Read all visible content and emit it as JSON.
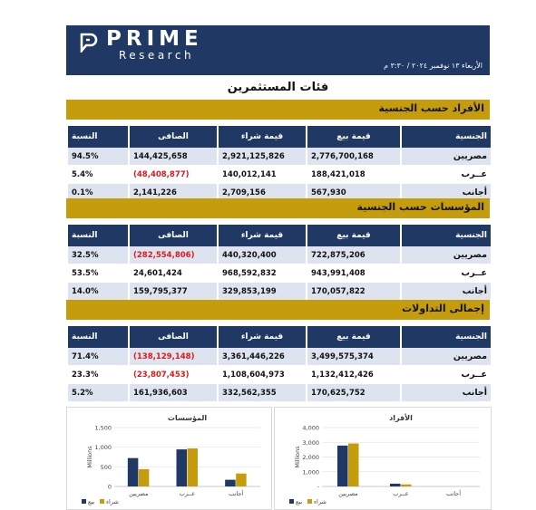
{
  "header": {
    "brand": "PRIME",
    "sub_brand": "Research",
    "date": "الأربعاء ١٣ نوفمبر ٢٠٢٤ / ٣:٣٠ م",
    "colors": {
      "navy": "#1f3864",
      "gold": "#c59d0c",
      "negative": "#e0191b"
    }
  },
  "page_title": "فئات المستثمرين",
  "columns": {
    "nationality": "الجنسية",
    "sell": "قيمة بيع",
    "buy": "قيمة شراء",
    "net": "الصافى",
    "ratio": "النسبة"
  },
  "sections": [
    {
      "title": "الأفراد حسب الجنسية",
      "rows": [
        {
          "nationality": "مصريين",
          "sell": "2,776,700,168",
          "buy": "2,921,125,826",
          "net": "144,425,658",
          "ratio": "94.5%",
          "negative": false
        },
        {
          "nationality": "عــرب",
          "sell": "188,421,018",
          "buy": "140,012,141",
          "net": "(48,408,877)",
          "ratio": "5.4%",
          "negative": true
        },
        {
          "nationality": "أجانب",
          "sell": "567,930",
          "buy": "2,709,156",
          "net": "2,141,226",
          "ratio": "0.1%",
          "negative": false
        }
      ]
    },
    {
      "title": "المؤسسات حسب الجنسية",
      "rows": [
        {
          "nationality": "مصريين",
          "sell": "722,875,206",
          "buy": "440,320,400",
          "net": "(282,554,806)",
          "ratio": "32.5%",
          "negative": true
        },
        {
          "nationality": "عــرب",
          "sell": "943,991,408",
          "buy": "968,592,832",
          "net": "24,601,424",
          "ratio": "53.5%",
          "negative": false
        },
        {
          "nationality": "أجانب",
          "sell": "170,057,822",
          "buy": "329,853,199",
          "net": "159,795,377",
          "ratio": "14.0%",
          "negative": false
        }
      ]
    },
    {
      "title": "إجمالى التداولات",
      "rows": [
        {
          "nationality": "مصريين",
          "sell": "3,499,575,374",
          "buy": "3,361,446,226",
          "net": "(138,129,148)",
          "ratio": "71.4%",
          "negative": true
        },
        {
          "nationality": "عــرب",
          "sell": "1,132,412,426",
          "buy": "1,108,604,973",
          "net": "(23,807,453)",
          "ratio": "23.3%",
          "negative": true
        },
        {
          "nationality": "أجانب",
          "sell": "170,625,752",
          "buy": "332,562,355",
          "net": "161,936,603",
          "ratio": "5.2%",
          "negative": false
        }
      ]
    }
  ],
  "chart_data": [
    {
      "type": "bar",
      "title": "المؤسسات",
      "ylabel": "Millions",
      "categories": [
        "مصريين",
        "عــرب",
        "أجانب"
      ],
      "series": [
        {
          "name": "بيع",
          "color": "#1f3864",
          "values": [
            722.9,
            944.0,
            170.1
          ]
        },
        {
          "name": "شراء",
          "color": "#c59d0c",
          "values": [
            440.3,
            968.6,
            329.9
          ]
        }
      ],
      "ylim": [
        0,
        1500
      ],
      "yticks": [
        "0",
        "500",
        "1,000",
        "1,500"
      ],
      "tick_values": [
        0,
        500,
        1000,
        1500
      ],
      "legend": "bottom-left"
    },
    {
      "type": "bar",
      "title": "الأفراد",
      "ylabel": "Millions",
      "categories": [
        "مصريين",
        "عــرب",
        "أجانب"
      ],
      "series": [
        {
          "name": "بيع",
          "color": "#1f3864",
          "values": [
            2776.7,
            188.4,
            0.6
          ]
        },
        {
          "name": "شراء",
          "color": "#c59d0c",
          "values": [
            2921.1,
            140.0,
            2.7
          ]
        }
      ],
      "ylim": [
        0,
        4000
      ],
      "yticks": [
        "-",
        "1,000",
        "2,000",
        "3,000",
        "4,000"
      ],
      "tick_values": [
        0,
        1000,
        2000,
        3000,
        4000
      ],
      "legend": "bottom-left"
    }
  ]
}
